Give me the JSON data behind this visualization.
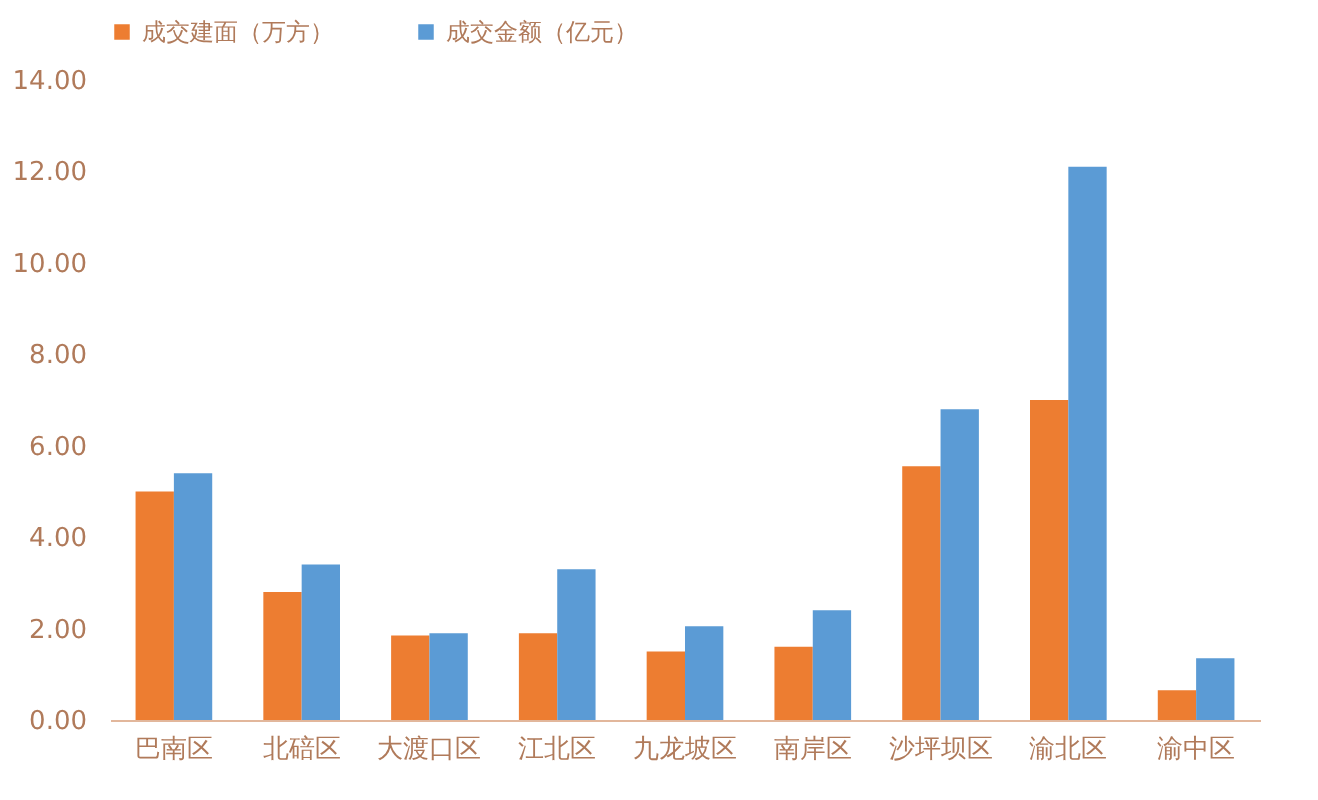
{
  "chart_data": {
    "type": "bar",
    "categories": [
      "巴南区",
      "北碚区",
      "大渡口区",
      "江北区",
      "九龙坡区",
      "南岸区",
      "沙坪坝区",
      "渝北区",
      "渝中区"
    ],
    "series": [
      {
        "name": "成交建面（万方）",
        "color": "#ed7d31",
        "values": [
          5.0,
          2.8,
          1.85,
          1.9,
          1.5,
          1.6,
          5.55,
          7.0,
          0.65
        ]
      },
      {
        "name": "成交金额（亿元）",
        "color": "#5b9bd5",
        "values": [
          5.4,
          3.4,
          1.9,
          3.3,
          2.05,
          2.4,
          6.8,
          12.1,
          1.35
        ]
      }
    ],
    "ylim": [
      0,
      14
    ],
    "yticks": [
      {
        "value": 0,
        "label": "0.00"
      },
      {
        "value": 2,
        "label": "2.00"
      },
      {
        "value": 4,
        "label": "4.00"
      },
      {
        "value": 6,
        "label": "6.00"
      },
      {
        "value": 8,
        "label": "8.00"
      },
      {
        "value": 10,
        "label": "10.00"
      },
      {
        "value": 12,
        "label": "12.00"
      },
      {
        "value": 14,
        "label": "14.00"
      }
    ],
    "grid": false,
    "legend": "top"
  }
}
